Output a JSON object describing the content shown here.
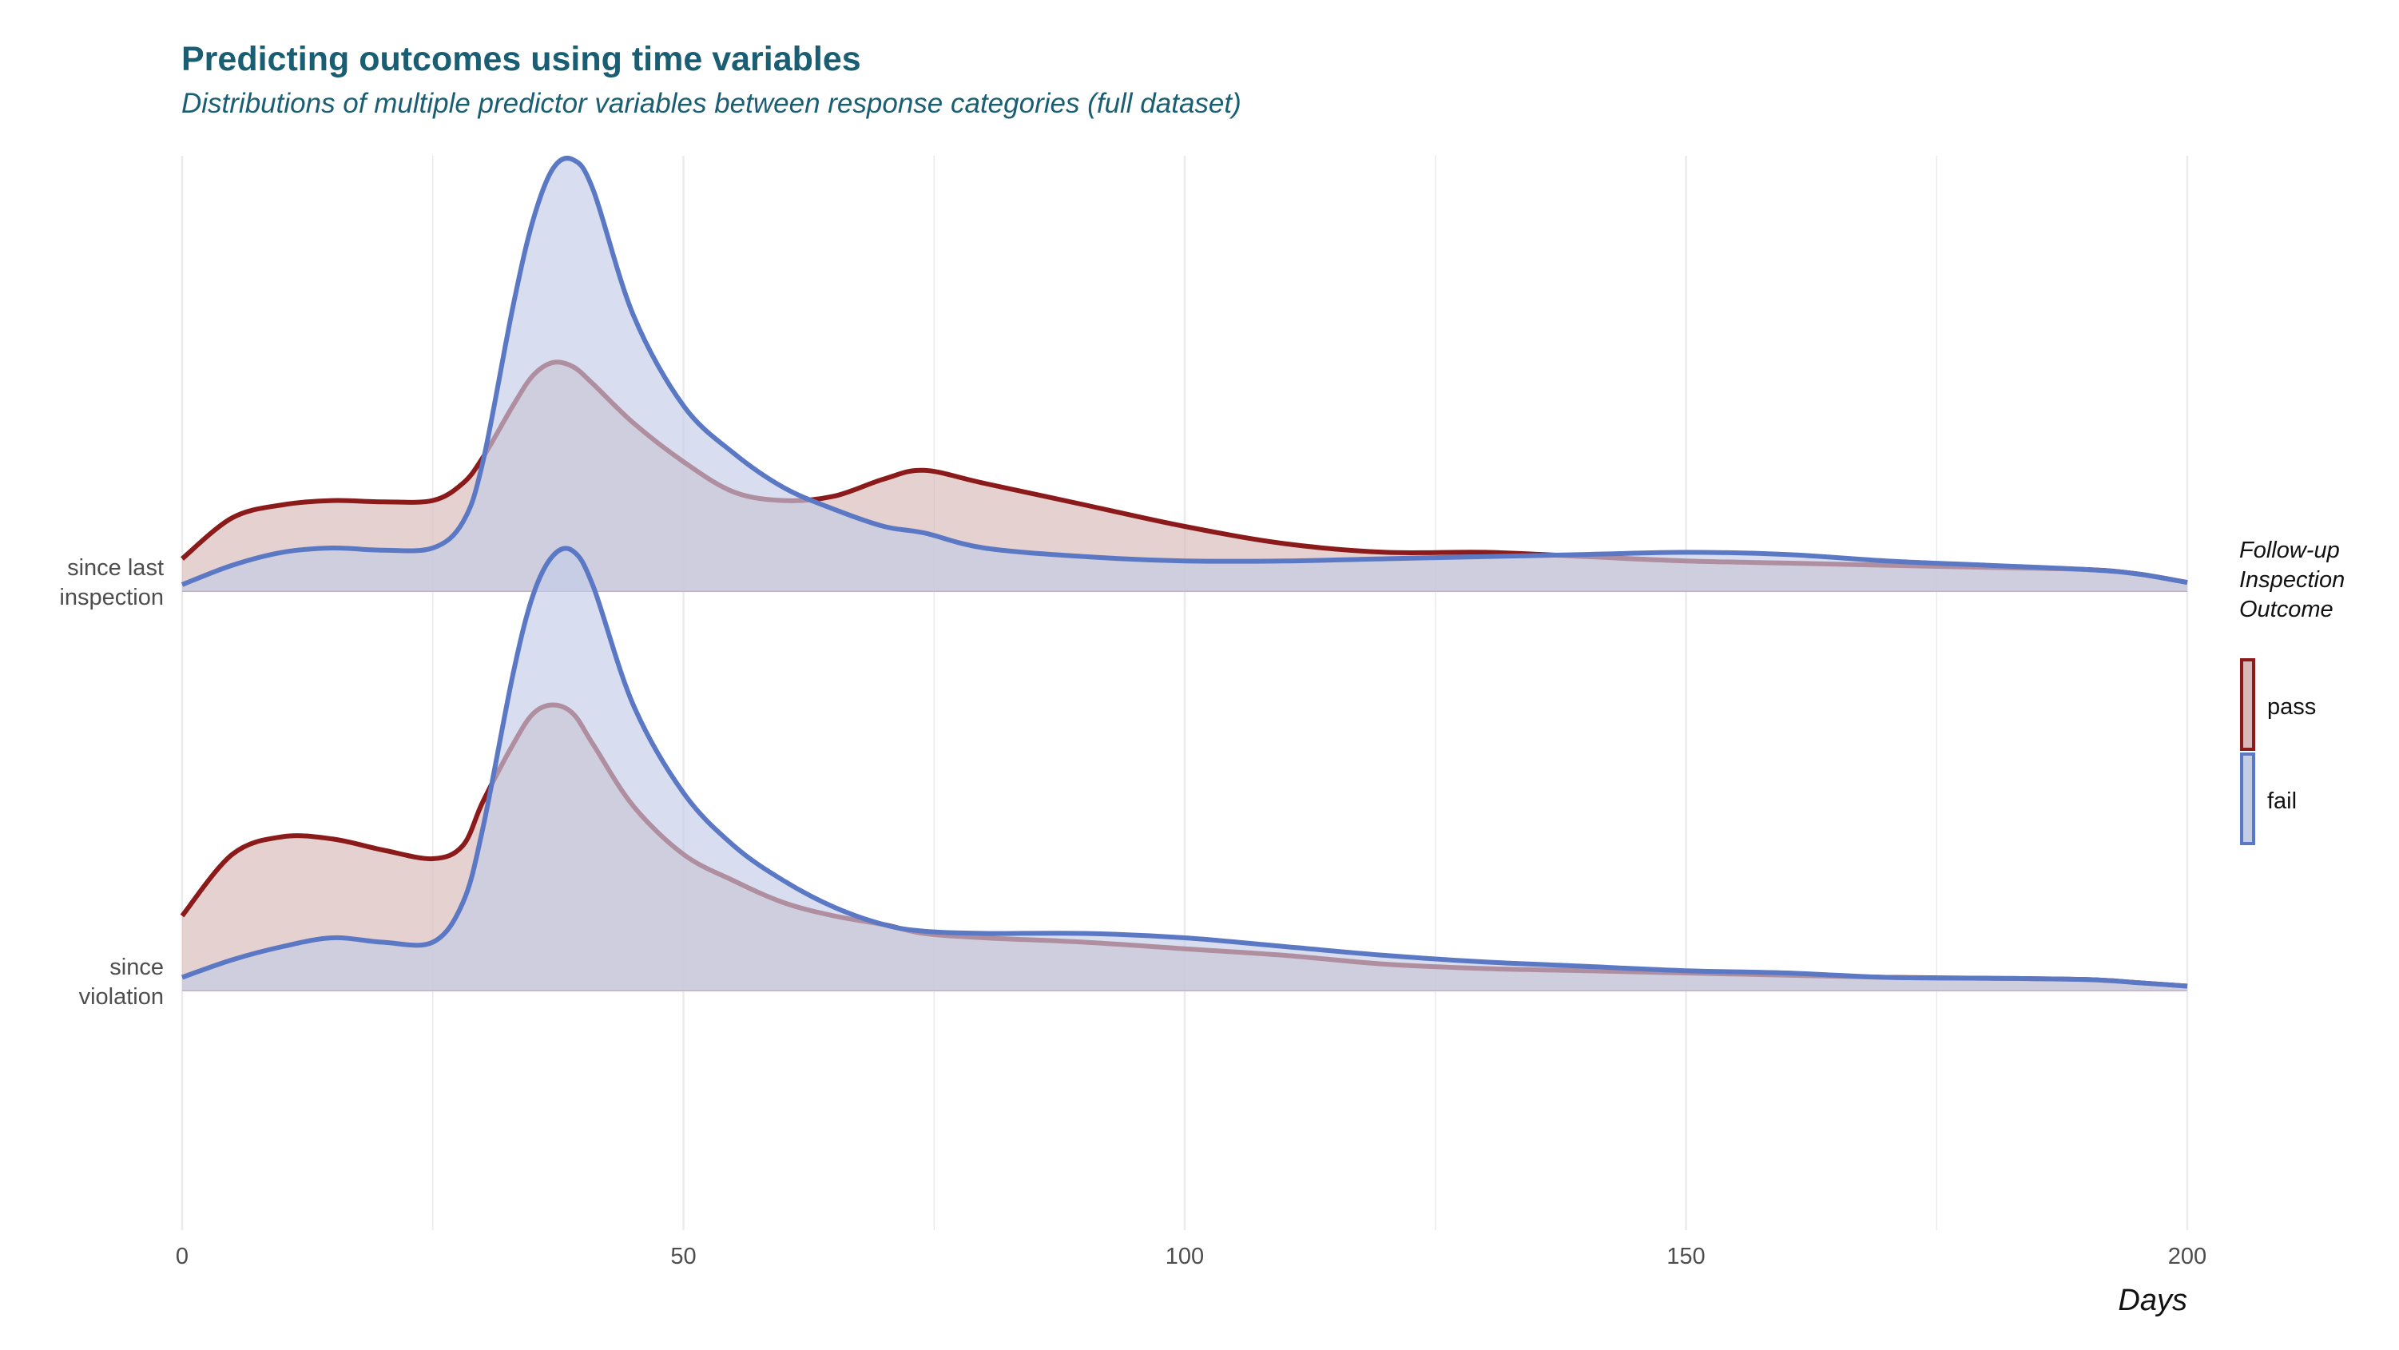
{
  "chart_data": {
    "type": "area",
    "subtype": "ridgeline-density",
    "title": "Predicting outcomes using time variables",
    "subtitle": "Distributions of multiple predictor variables between response categories (full dataset)",
    "xlabel": "Days",
    "ylabel": "",
    "xlim": [
      0,
      200
    ],
    "x_ticks": [
      0,
      50,
      100,
      150,
      200
    ],
    "grid": true,
    "legend": {
      "title": "Follow-up\nInspection\nOutcome",
      "position": "right",
      "entries": [
        "pass",
        "fail"
      ]
    },
    "colors": {
      "pass_line": "#8b1a1a",
      "pass_fill": "#d9b9b9",
      "fail_line": "#5b78c5",
      "fail_fill": "#c3cde6",
      "grid": "#ebebeb",
      "title": "#1a5e73"
    },
    "x": [
      0,
      5,
      10,
      15,
      20,
      25,
      28,
      30,
      33,
      35,
      37,
      39,
      41,
      45,
      50,
      55,
      60,
      65,
      70,
      74,
      80,
      90,
      100,
      110,
      120,
      130,
      140,
      150,
      160,
      170,
      180,
      190,
      195,
      200
    ],
    "rows": [
      {
        "label": "since last\ninspection",
        "series": [
          {
            "name": "pass",
            "values": [
              0.075,
              0.17,
              0.2,
              0.21,
              0.207,
              0.21,
              0.25,
              0.31,
              0.43,
              0.5,
              0.53,
              0.52,
              0.48,
              0.39,
              0.3,
              0.23,
              0.21,
              0.22,
              0.26,
              0.28,
              0.25,
              0.2,
              0.15,
              0.11,
              0.09,
              0.09,
              0.08,
              0.07,
              0.065,
              0.06,
              0.055,
              0.05,
              0.04,
              0.02
            ]
          },
          {
            "name": "fail",
            "values": [
              0.015,
              0.06,
              0.09,
              0.1,
              0.095,
              0.1,
              0.16,
              0.3,
              0.66,
              0.86,
              0.98,
              1.0,
              0.93,
              0.64,
              0.43,
              0.32,
              0.24,
              0.19,
              0.15,
              0.135,
              0.1,
              0.08,
              0.07,
              0.07,
              0.075,
              0.08,
              0.085,
              0.09,
              0.085,
              0.07,
              0.06,
              0.05,
              0.04,
              0.02
            ]
          }
        ]
      },
      {
        "label": "since\nviolation",
        "series": [
          {
            "name": "pass",
            "values": [
              0.17,
              0.31,
              0.35,
              0.345,
              0.32,
              0.3,
              0.33,
              0.43,
              0.56,
              0.63,
              0.65,
              0.63,
              0.56,
              0.42,
              0.31,
              0.25,
              0.2,
              0.17,
              0.15,
              0.13,
              0.12,
              0.11,
              0.095,
              0.08,
              0.06,
              0.05,
              0.045,
              0.04,
              0.035,
              0.03,
              0.028,
              0.025,
              0.018,
              0.01
            ]
          },
          {
            "name": "fail",
            "values": [
              0.03,
              0.07,
              0.1,
              0.12,
              0.11,
              0.11,
              0.2,
              0.37,
              0.72,
              0.9,
              0.99,
              1.0,
              0.92,
              0.65,
              0.45,
              0.33,
              0.25,
              0.19,
              0.15,
              0.135,
              0.13,
              0.13,
              0.12,
              0.1,
              0.08,
              0.065,
              0.055,
              0.045,
              0.04,
              0.03,
              0.028,
              0.025,
              0.018,
              0.01
            ]
          }
        ]
      }
    ]
  }
}
